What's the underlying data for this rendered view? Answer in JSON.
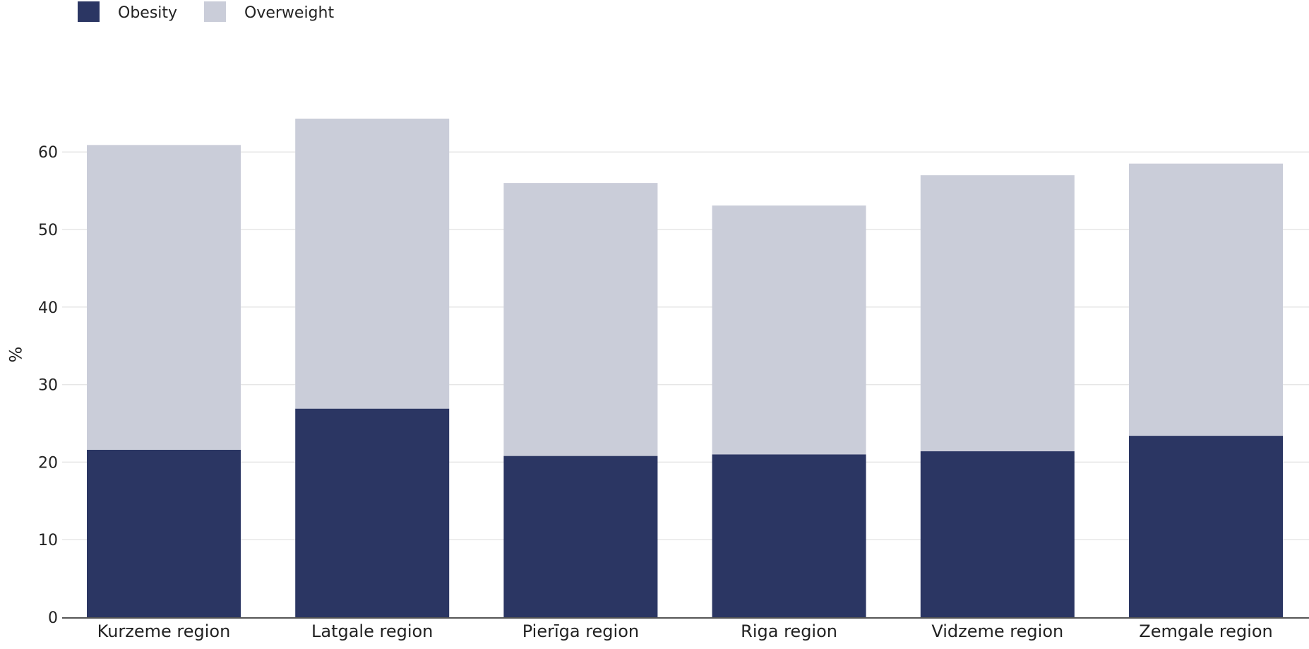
{
  "chart_data": {
    "type": "bar",
    "stacked": true,
    "categories": [
      "Kurzeme region",
      "Latgale region",
      "Pierīga region",
      "Riga region",
      "Vidzeme region",
      "Zemgale region"
    ],
    "series": [
      {
        "name": "Obesity",
        "color": "#2b3663",
        "values": [
          21.6,
          26.9,
          20.8,
          21.0,
          21.4,
          23.4
        ]
      },
      {
        "name": "Overweight",
        "color": "#cacdd9",
        "values": [
          39.3,
          37.4,
          35.2,
          32.1,
          35.6,
          35.1
        ]
      }
    ],
    "totals": [
      60.9,
      64.3,
      56.0,
      53.1,
      57.0,
      58.5
    ],
    "title": "",
    "xlabel": "",
    "ylabel": "%",
    "ylim": [
      0,
      65
    ],
    "yticks": [
      0,
      10,
      20,
      30,
      40,
      50,
      60
    ],
    "grid": true,
    "legend_position": "top-left"
  }
}
